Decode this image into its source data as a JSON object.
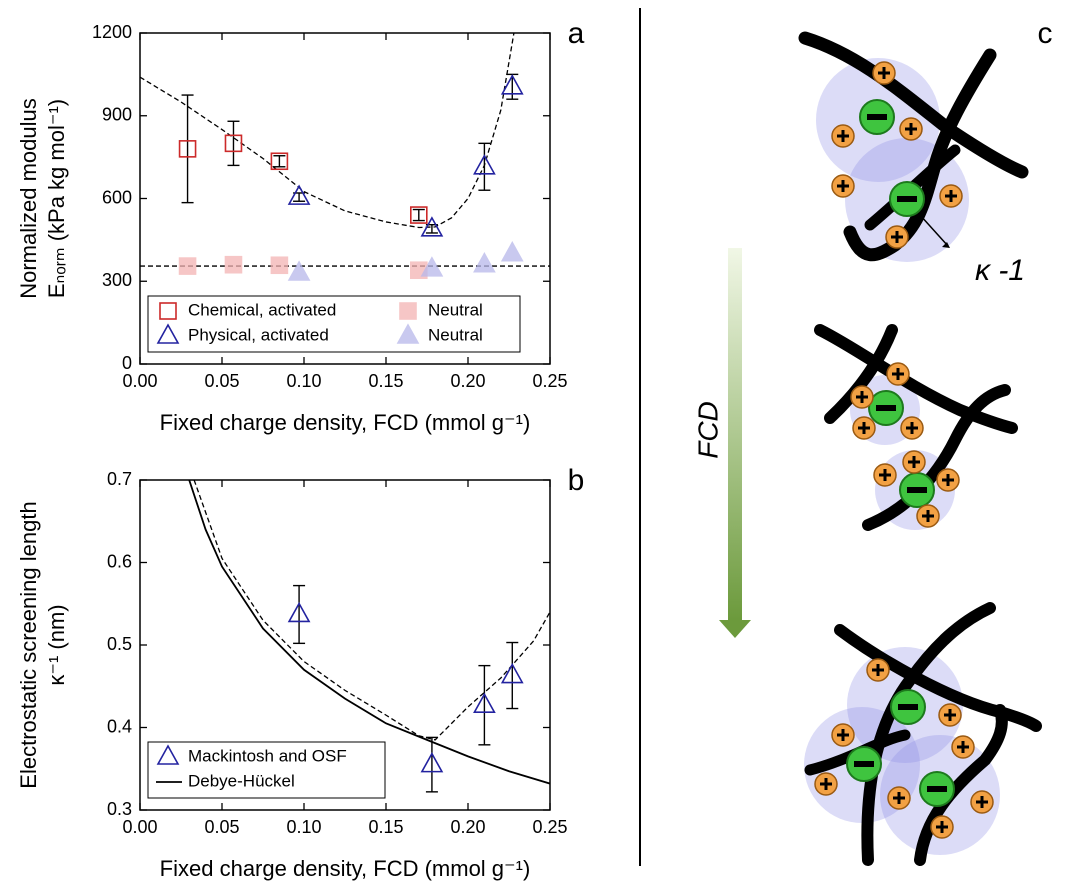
{
  "chart_data": [
    {
      "type": "scatter",
      "panel_label": "a",
      "x_label": "Fixed charge density, FCD (mmol g⁻¹)",
      "y_label": [
        "Normalized modulus",
        "Eₙₒᵣₘ (kPa kg mol⁻¹)"
      ],
      "xlim": [
        0,
        0.25
      ],
      "ylim": [
        0,
        1200
      ],
      "xticks": [
        {
          "value": 0,
          "label": "0.00"
        },
        {
          "value": 0.05,
          "label": "0.05"
        },
        {
          "value": 0.1,
          "label": "0.10"
        },
        {
          "value": 0.15,
          "label": "0.15"
        },
        {
          "value": 0.2,
          "label": "0.20"
        },
        {
          "value": 0.25,
          "label": "0.25"
        }
      ],
      "yticks": [
        0,
        300,
        600,
        900,
        1200
      ],
      "legend": "lower left",
      "legend_columns": 2,
      "series": [
        {
          "name": "Chemical, activated",
          "color": "#cc2a2a",
          "marker": "square",
          "filled": false,
          "x": [
            0.029,
            0.057,
            0.085,
            0.17
          ],
          "values": [
            780,
            800,
            735,
            540
          ],
          "errors": [
            195,
            80,
            20,
            20
          ]
        },
        {
          "name": "Neutral",
          "color": "#f4b3b3",
          "marker": "square",
          "filled": true,
          "x": [
            0.029,
            0.057,
            0.085,
            0.17
          ],
          "values": [
            355,
            360,
            358,
            340
          ]
        },
        {
          "name": "Physical, activated",
          "color": "#2323a0",
          "marker": "triangle",
          "filled": false,
          "x": [
            0.097,
            0.178,
            0.21,
            0.227
          ],
          "values": [
            605,
            490,
            715,
            1005
          ],
          "errors": [
            15,
            15,
            85,
            45
          ]
        },
        {
          "name": "Neutral",
          "color": "#b8b8ea",
          "marker": "triangle",
          "filled": true,
          "x": [
            0.097,
            0.178,
            0.21,
            0.227
          ],
          "values": [
            330,
            345,
            360,
            400
          ]
        },
        {
          "color": "#000000",
          "line_style": "dashed",
          "x": [
            0,
            0.025,
            0.05,
            0.075,
            0.1,
            0.125,
            0.15,
            0.17,
            0.18,
            0.19,
            0.2,
            0.21,
            0.22,
            0.228
          ],
          "values": [
            1040,
            950,
            850,
            745,
            625,
            555,
            515,
            495,
            497,
            530,
            600,
            720,
            920,
            1200
          ]
        },
        {
          "color": "#000000",
          "line_style": "dashed",
          "x": [
            0,
            0.25
          ],
          "values": [
            355,
            355
          ]
        }
      ]
    },
    {
      "type": "scatter",
      "panel_label": "b",
      "x_label": "Fixed charge density, FCD (mmol g⁻¹)",
      "y_label": [
        "Electrostatic screening length",
        "κ⁻¹ (nm)"
      ],
      "xlim": [
        0,
        0.25
      ],
      "ylim": [
        0.3,
        0.7
      ],
      "xticks": [
        {
          "value": 0,
          "label": "0.00"
        },
        {
          "value": 0.05,
          "label": "0.05"
        },
        {
          "value": 0.1,
          "label": "0.10"
        },
        {
          "value": 0.15,
          "label": "0.15"
        },
        {
          "value": 0.2,
          "label": "0.20"
        },
        {
          "value": 0.25,
          "label": "0.25"
        }
      ],
      "yticks": [
        0.3,
        0.4,
        0.5,
        0.6,
        0.7
      ],
      "legend": "lower left",
      "legend_columns": 1,
      "series": [
        {
          "name": "Mackintosh and OSF",
          "color": "#2323a0",
          "marker": "triangle",
          "filled": false,
          "x": [
            0.097,
            0.178,
            0.21,
            0.227
          ],
          "values": [
            0.537,
            0.355,
            0.427,
            0.463
          ],
          "errors": [
            0.035,
            0.033,
            0.048,
            0.04
          ]
        },
        {
          "name": "Debye-Hückel",
          "color": "#000000",
          "line_style": "solid",
          "x": [
            0.03,
            0.04,
            0.05,
            0.075,
            0.1,
            0.125,
            0.15,
            0.175,
            0.2,
            0.225,
            0.25
          ],
          "values": [
            0.7,
            0.64,
            0.595,
            0.52,
            0.47,
            0.435,
            0.405,
            0.385,
            0.365,
            0.347,
            0.332
          ]
        },
        {
          "color": "#000000",
          "line_style": "dashed",
          "x": [
            0.033,
            0.05,
            0.075,
            0.1,
            0.125,
            0.15,
            0.17,
            0.18,
            0.19,
            0.2,
            0.22,
            0.24,
            0.25
          ],
          "values": [
            0.7,
            0.605,
            0.53,
            0.48,
            0.445,
            0.415,
            0.39,
            0.385,
            0.405,
            0.425,
            0.46,
            0.505,
            0.54
          ]
        }
      ]
    }
  ],
  "panel_c": {
    "label": "c",
    "arrow_label": "FCD",
    "screening_label": "κ -1"
  }
}
